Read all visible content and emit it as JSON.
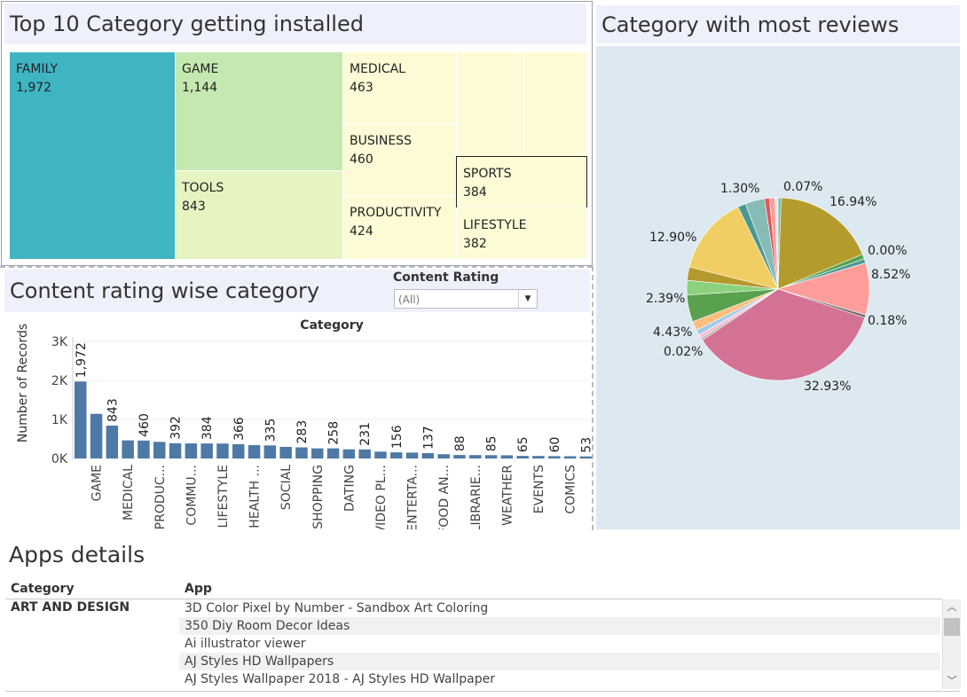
{
  "treemap": {
    "title": "Top 10 Category getting installed",
    "items": [
      {
        "category": "FAMILY",
        "value": "1,972",
        "color": "#3fb5c2"
      },
      {
        "category": "GAME",
        "value": "1,144",
        "color": "#c5e8b0"
      },
      {
        "category": "TOOLS",
        "value": "843",
        "color": "#e6f4c2"
      },
      {
        "category": "MEDICAL",
        "value": "463",
        "color": "#fdfbd6"
      },
      {
        "category": "BUSINESS",
        "value": "460",
        "color": "#fdfbd6"
      },
      {
        "category": "PRODUCTIVITY",
        "value": "424",
        "color": "#fdfbd6"
      },
      {
        "category": "SPORTS",
        "value": "384",
        "color": "#fdfbd6"
      },
      {
        "category": "LIFESTYLE",
        "value": "382",
        "color": "#fdfbd6"
      }
    ]
  },
  "pie": {
    "title": "Category with most reviews",
    "labels": [
      "1.30%",
      "0.07%",
      "16.94%",
      "0.00%",
      "8.52%",
      "0.18%",
      "32.93%",
      "0.02%",
      "4.43%",
      "2.39%",
      "12.90%"
    ]
  },
  "bar": {
    "title": "Content rating wise category",
    "filter_label": "Content Rating",
    "filter_value": "(All)",
    "header": "Category",
    "ylabel": "Number of Records",
    "yticks": [
      "3K",
      "2K",
      "1K",
      "0K"
    ],
    "bar_color": "#4e79a7"
  },
  "chart_data": [
    {
      "type": "treemap",
      "title": "Top 10 Category getting installed",
      "categories": [
        "FAMILY",
        "GAME",
        "TOOLS",
        "MEDICAL",
        "BUSINESS",
        "PRODUCTIVITY",
        "SPORTS",
        "LIFESTYLE"
      ],
      "values": [
        1972,
        1144,
        843,
        463,
        460,
        424,
        384,
        382
      ]
    },
    {
      "type": "pie",
      "title": "Category with most reviews",
      "values_percent": [
        32.93,
        16.94,
        12.9,
        8.52,
        4.43,
        2.39,
        1.3,
        0.18,
        0.07,
        0.02,
        0.0
      ]
    },
    {
      "type": "bar",
      "title": "Content rating wise category",
      "xlabel": "Category",
      "ylabel": "Number of Records",
      "ylim": [
        0,
        3000
      ],
      "values": [
        1972,
        1144,
        843,
        463,
        460,
        424,
        392,
        387,
        384,
        382,
        366,
        341,
        335,
        297,
        283,
        260,
        258,
        234,
        231,
        175,
        156,
        149,
        137,
        108,
        88,
        86,
        85,
        82,
        65,
        64,
        60,
        57,
        53
      ],
      "data_labels": [
        "1,972",
        "",
        "843",
        "",
        "460",
        "",
        "392",
        "",
        "384",
        "",
        "366",
        "",
        "335",
        "",
        "283",
        "",
        "258",
        "",
        "231",
        "",
        "156",
        "",
        "137",
        "",
        "88",
        "",
        "85",
        "",
        "65",
        "",
        "60",
        "",
        "53"
      ],
      "tick_labels": [
        "",
        "GAME",
        "",
        "MEDICAL",
        "",
        "PRODUC...",
        "",
        "COMMU...",
        "",
        "LIFESTYLE",
        "",
        "HEALTH ...",
        "",
        "SOCIAL",
        "",
        "SHOPPING",
        "",
        "DATING",
        "",
        "VIDEO PL...",
        "",
        "ENTERTA...",
        "",
        "FOOD AN...",
        "",
        "LIBRARIE...",
        "",
        "WEATHER",
        "",
        "EVENTS",
        "",
        "COMICS",
        ""
      ]
    }
  ],
  "table": {
    "title": "Apps details",
    "col_category": "Category",
    "col_app": "App",
    "category_value": "ART AND DESIGN",
    "rows": [
      "3D Color Pixel by Number - Sandbox Art Coloring",
      "350 Diy Room Decor Ideas",
      "Ai illustrator viewer",
      "AJ Styles HD Wallpapers",
      "AJ Styles Wallpaper 2018 - AJ Styles HD Wallpaper"
    ]
  }
}
